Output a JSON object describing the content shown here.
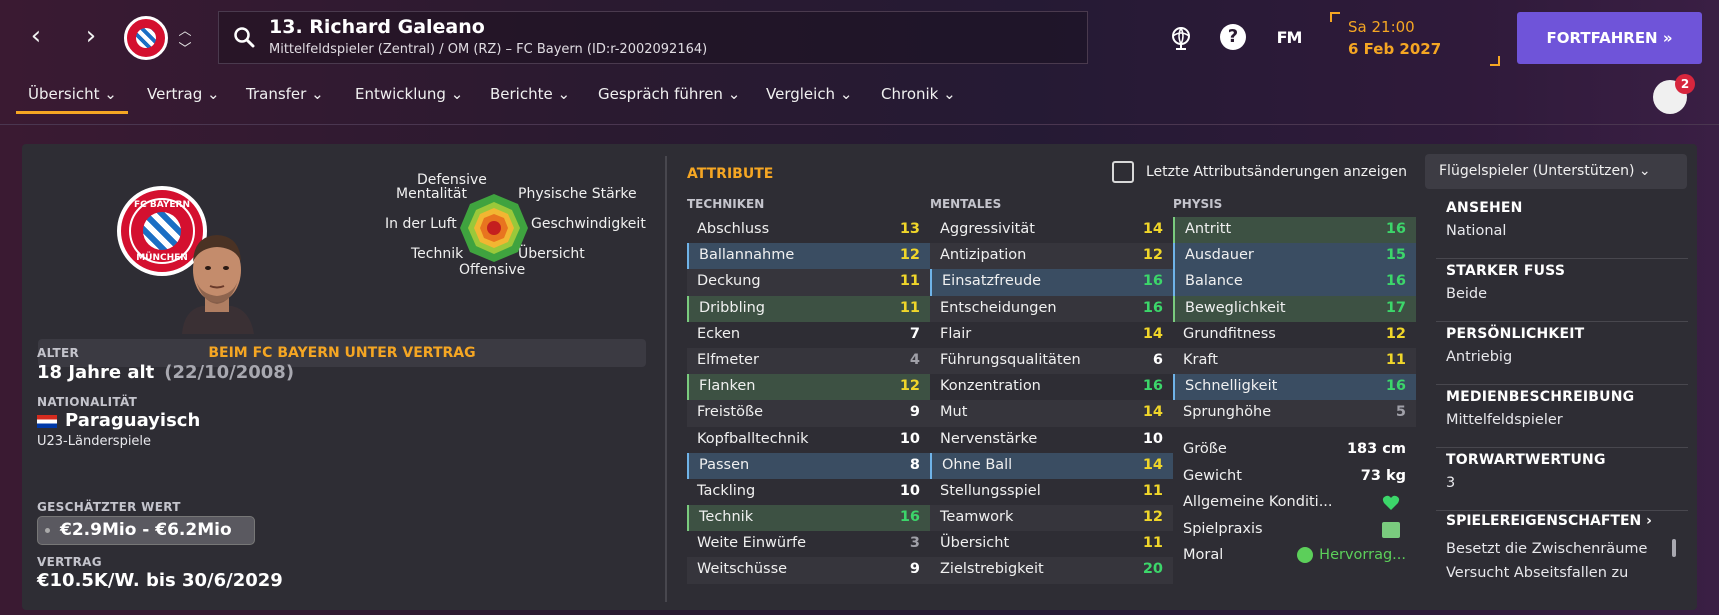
{
  "header": {
    "player_title": "13. Richard Galeano",
    "player_subtitle": "Mittelfeldspieler (Zentral) / OM (RZ) – FC Bayern (ID:r-2002092164)",
    "fm_logo": "FM",
    "date_time": "Sa 21:00",
    "date_date": "6 Feb 2027",
    "continue_label": "FORTFAHREN »",
    "help_label": "?"
  },
  "tabs": [
    "Übersicht",
    "Vertrag",
    "Transfer",
    "Entwicklung",
    "Berichte",
    "Gespräch führen",
    "Vergleich",
    "Chronik"
  ],
  "notifications_count": "2",
  "crest_text": {
    "top": "FC BAYERN",
    "bottom": "MÜNCHEN"
  },
  "radar": {
    "labels": [
      "Defensive",
      "Mentalität",
      "Physische Stärke",
      "In der Luft",
      "Geschwindigkeit",
      "Technik",
      "Übersicht",
      "Offensive"
    ]
  },
  "contract_banner": "BEIM FC BAYERN UNTER VERTRAG",
  "info": {
    "age_label": "ALTER",
    "age_value": "18 Jahre alt",
    "dob": "(22/10/2008)",
    "nationality_label": "NATIONALITÄT",
    "nationality_value": "Paraguayisch",
    "nationality_sub": "U23-Länderspiele",
    "value_label": "GESCHÄTZTER WERT",
    "value_value": "€2.9Mio - €6.2Mio",
    "contract_label": "VERTRAG",
    "contract_value": "€10.5K/W. bis 30/6/2029"
  },
  "attributes": {
    "title": "ATTRIBUTE",
    "checkbox_label": "Letzte Attributsänderungen anzeigen",
    "role_select": "Flügelspieler (Unterstützen)",
    "columns": [
      {
        "head": "TECHNIKEN",
        "rows": [
          {
            "name": "Abschluss",
            "value": "13"
          },
          {
            "name": "Ballannahme",
            "value": "12"
          },
          {
            "name": "Deckung",
            "value": "11"
          },
          {
            "name": "Dribbling",
            "value": "11"
          },
          {
            "name": "Ecken",
            "value": "7"
          },
          {
            "name": "Elfmeter",
            "value": "4"
          },
          {
            "name": "Flanken",
            "value": "12"
          },
          {
            "name": "Freistöße",
            "value": "9"
          },
          {
            "name": "Kopfballtechnik",
            "value": "10"
          },
          {
            "name": "Passen",
            "value": "8"
          },
          {
            "name": "Tackling",
            "value": "10"
          },
          {
            "name": "Technik",
            "value": "16"
          },
          {
            "name": "Weite Einwürfe",
            "value": "3"
          },
          {
            "name": "Weitschüsse",
            "value": "9"
          }
        ]
      },
      {
        "head": "MENTALES",
        "rows": [
          {
            "name": "Aggressivität",
            "value": "14"
          },
          {
            "name": "Antizipation",
            "value": "12"
          },
          {
            "name": "Einsatzfreude",
            "value": "16"
          },
          {
            "name": "Entscheidungen",
            "value": "16"
          },
          {
            "name": "Flair",
            "value": "14"
          },
          {
            "name": "Führungsqualitäten",
            "value": "6"
          },
          {
            "name": "Konzentration",
            "value": "16"
          },
          {
            "name": "Mut",
            "value": "14"
          },
          {
            "name": "Nervenstärke",
            "value": "10"
          },
          {
            "name": "Ohne Ball",
            "value": "14"
          },
          {
            "name": "Stellungsspiel",
            "value": "11"
          },
          {
            "name": "Teamwork",
            "value": "12"
          },
          {
            "name": "Übersicht",
            "value": "11"
          },
          {
            "name": "Zielstrebigkeit",
            "value": "20"
          }
        ]
      },
      {
        "head": "PHYSIS",
        "rows": [
          {
            "name": "Antritt",
            "value": "16"
          },
          {
            "name": "Ausdauer",
            "value": "15"
          },
          {
            "name": "Balance",
            "value": "16"
          },
          {
            "name": "Beweglichkeit",
            "value": "17"
          },
          {
            "name": "Grundfitness",
            "value": "12"
          },
          {
            "name": "Kraft",
            "value": "11"
          },
          {
            "name": "Schnelligkeit",
            "value": "16"
          },
          {
            "name": "Sprunghöhe",
            "value": "5"
          }
        ]
      }
    ]
  },
  "stats": {
    "height_label": "Größe",
    "height_value": "183 cm",
    "weight_label": "Gewicht",
    "weight_value": "73 kg",
    "condition_label": "Allgemeine Konditi...",
    "match_label": "Spielpraxis",
    "moral_label": "Moral",
    "moral_value": "Hervorrag..."
  },
  "side": {
    "blocks": [
      {
        "label": "ANSEHEN",
        "value": "National"
      },
      {
        "label": "STARKER FUSS",
        "value": "Beide"
      },
      {
        "label": "PERSÖNLICHKEIT",
        "value": "Antriebig"
      },
      {
        "label": "MEDIENBESCHREIBUNG",
        "value": "Mittelfeldspieler"
      },
      {
        "label": "TORWARTWERTUNG",
        "value": "3"
      }
    ],
    "traits_link": "SPIELEREIGENSCHAFTEN ›",
    "traits": [
      "Besetzt die Zwischenräume",
      "Versucht Abseitsfallen zu"
    ]
  }
}
